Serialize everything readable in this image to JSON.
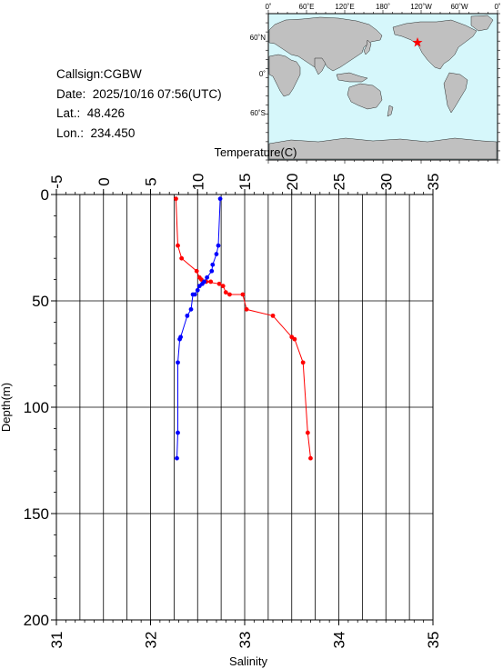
{
  "station": {
    "callsign": "Callsign:CGBW",
    "date": "Date:  2025/10/16 07:56(UTC)",
    "lat": "Lat.:  48.426",
    "lon": "Lon.:  234.450"
  },
  "map": {
    "lon_labels": [
      "0˚",
      "60˚E",
      "120˚E",
      "180˚",
      "120˚W",
      "60˚W",
      "0˚"
    ],
    "lat_labels": [
      "60˚N",
      "0˚",
      "60˚S"
    ],
    "ocean_color": "#d6f7fb",
    "land_color": "#c0c0c0",
    "station_marker_color": "#ff0000"
  },
  "chart_data": {
    "type": "line",
    "y_axis": {
      "label": "Depth(m)",
      "range": [
        0,
        200
      ],
      "inverted": true,
      "ticks": [
        0,
        50,
        100,
        150,
        200
      ]
    },
    "top_axis": {
      "label": "Temperature(C)",
      "range": [
        -5,
        35
      ],
      "ticks": [
        -5,
        0,
        5,
        10,
        15,
        20,
        25,
        30,
        35
      ]
    },
    "bottom_axis": {
      "label": "Salinity",
      "range": [
        31,
        35
      ],
      "ticks": [
        31,
        32,
        33,
        34,
        35
      ]
    },
    "grid": true,
    "series": [
      {
        "axis": "top",
        "color": "#ff0000",
        "depth": [
          2,
          24,
          30,
          36,
          39,
          40,
          41,
          41,
          42,
          43,
          46,
          47,
          47,
          54,
          57,
          67,
          68,
          79,
          112,
          124
        ],
        "values": [
          7.7,
          7.9,
          8.3,
          9.9,
          10.2,
          10.4,
          11.4,
          10.9,
          12.3,
          12.7,
          13.0,
          13.4,
          14.8,
          15.2,
          18.0,
          20.0,
          20.3,
          21.2,
          21.7,
          22.0
        ]
      },
      {
        "axis": "bottom",
        "color": "#0000ff",
        "depth": [
          2,
          24,
          28,
          33,
          36,
          39,
          41,
          42,
          43,
          45,
          47,
          47,
          54,
          57,
          67,
          68,
          79,
          112,
          124
        ],
        "values": [
          32.74,
          32.72,
          32.7,
          32.66,
          32.65,
          32.6,
          32.57,
          32.55,
          32.52,
          32.5,
          32.47,
          32.45,
          32.43,
          32.39,
          32.32,
          32.31,
          32.29,
          32.29,
          32.28
        ]
      }
    ]
  }
}
